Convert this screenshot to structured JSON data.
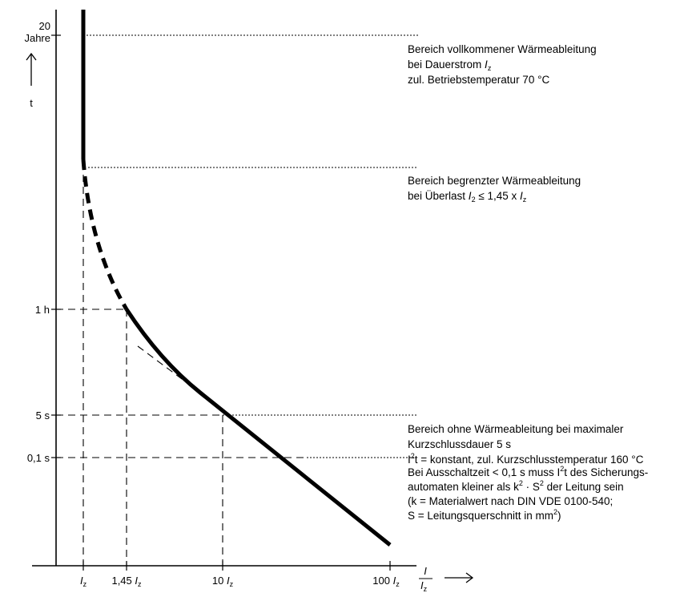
{
  "diagram": {
    "y_axis": {
      "top_value": "20",
      "top_unit": "Jahre",
      "variable": "t",
      "ticks": [
        "1 h",
        "5 s",
        "0,1 s"
      ]
    },
    "x_axis": {
      "ticks": [
        {
          "prefix": "",
          "var": "I",
          "sub": "z"
        },
        {
          "prefix": "1,45 ",
          "var": "I",
          "sub": "z"
        },
        {
          "prefix": "10 ",
          "var": "I",
          "sub": "z"
        },
        {
          "prefix": "100 ",
          "var": "I",
          "sub": "z"
        }
      ],
      "ratio_numerator": "I",
      "ratio_denominator": "I",
      "ratio_denominator_sub": "z"
    },
    "regions": [
      {
        "lines": [
          {
            "text": "Bereich vollkommener Wärmeableitung"
          },
          {
            "text": "bei Dauerstrom ",
            "var": "I",
            "sub": "z"
          },
          {
            "text": "zul. Betriebstemperatur 70 °C"
          }
        ]
      },
      {
        "lines": [
          {
            "text": "Bereich begrenzter Wärmeableitung"
          },
          {
            "text": "bei Überlast ",
            "var": "I",
            "sub": "2",
            "rest": " ≤ 1,45 x ",
            "var2": "I",
            "sub2": "z"
          }
        ]
      },
      {
        "lines": [
          {
            "text": "Bereich ohne Wärmeableitung bei maximaler"
          },
          {
            "text": "Kurzschlussdauer 5 s"
          },
          {
            "text": "I",
            "sup": "2",
            "rest": "t = konstant, zul. Kurzschlusstemperatur 160 °C"
          }
        ]
      },
      {
        "lines": [
          {
            "text": "Bei Ausschaltzeit < 0,1 s muss I",
            "sup": "2",
            "rest": "t des Sicherungs-"
          },
          {
            "text": "automaten kleiner als k",
            "sup": "2",
            "rest": " · S",
            "sup2": "2",
            "rest2": " der Leitung sein"
          },
          {
            "text": "(k = Materialwert nach DIN VDE 0100-540;"
          },
          {
            "text": "S = Leitungsquerschnitt in mm",
            "sup": "2",
            "rest": ")"
          }
        ]
      }
    ]
  }
}
